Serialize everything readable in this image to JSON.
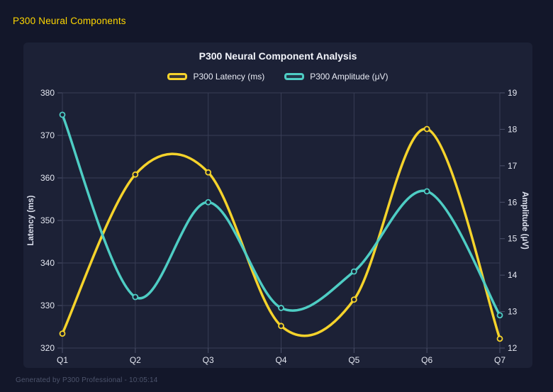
{
  "page": {
    "app_title": "P300 Neural Components",
    "footer": "Generated by P300 Professional - 10:05:14"
  },
  "chart": {
    "title": "P300 Neural Component Analysis"
  },
  "chart_data": {
    "type": "line",
    "smooth": true,
    "grid": true,
    "legend_position": "top",
    "title": "P300 Neural Component Analysis",
    "categories": [
      "Q1",
      "Q2",
      "Q3",
      "Q4",
      "Q5",
      "Q6",
      "Q7"
    ],
    "series": [
      {
        "name": "P300 Latency (ms)",
        "axis": "left",
        "color": "#f5d32b",
        "values": [
          323.4,
          360.8,
          361.3,
          325.2,
          331.4,
          371.5,
          322.2
        ]
      },
      {
        "name": "P300 Amplitude (μV)",
        "axis": "right",
        "color": "#4ecdc4",
        "values": [
          18.4,
          13.4,
          16.0,
          13.1,
          14.1,
          16.3,
          12.9
        ]
      }
    ],
    "left_axis": {
      "label": "Latency (ms)",
      "min": 320,
      "max": 380,
      "ticks": [
        320,
        330,
        340,
        350,
        360,
        370,
        380
      ]
    },
    "right_axis": {
      "label": "Amplitude (μV)",
      "min": 12,
      "max": 19,
      "ticks": [
        12,
        13,
        14,
        15,
        16,
        17,
        18,
        19
      ]
    }
  },
  "colors": {
    "page_bg": "#13172a",
    "card_bg": "#1c2136",
    "grid": "#383d55",
    "tick": "#4a5069",
    "header_text": "#ffd700",
    "title_text": "#f2f4fa",
    "footer_text": "#4d546c"
  }
}
